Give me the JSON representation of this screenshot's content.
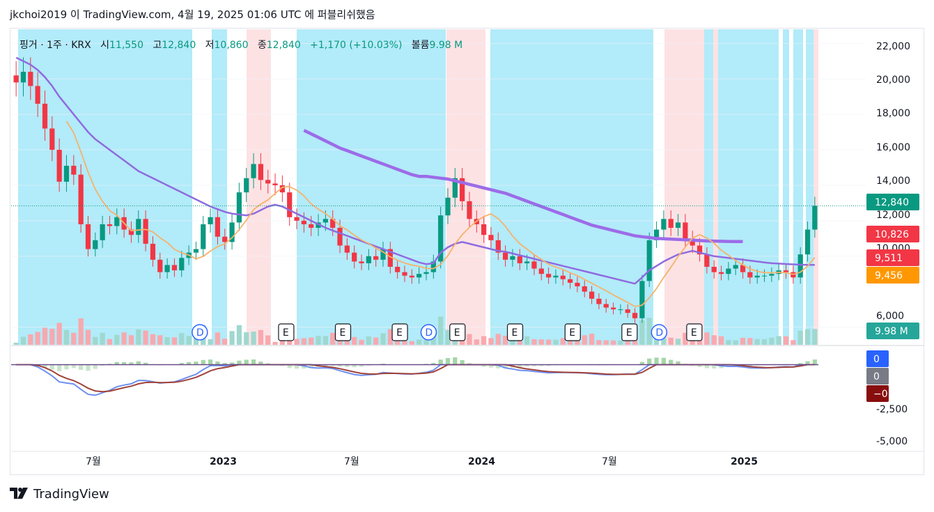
{
  "header": {
    "title": "jkchoi2019 이 TradingView.com, 4월 19, 2025 01:06 UTC 에 퍼블리쉬했음"
  },
  "legend": {
    "symbol": "핑거 · 1주 · KRX",
    "o_label": "시",
    "o_value": "11,550",
    "h_label": "고",
    "h_value": "12,840",
    "l_label": "저",
    "l_value": "10,860",
    "c_label": "종",
    "c_value": "12,840",
    "change": "+1,170 (+10.03%)",
    "vol_label": "볼륨",
    "vol_value": "9.98 M"
  },
  "footer": {
    "brand": "TradingView"
  },
  "colors": {
    "up": "#089981",
    "down": "#f23645",
    "bg_blue": "#b2ebf9",
    "bg_pink": "#fde2e4",
    "ma_long": "#9c6ce8",
    "ma_mid": "#8f6bdf",
    "ma_short": "#f6b26b",
    "macd": "#6d8ff0",
    "signal": "#a0433a"
  },
  "chart_data": [
    {
      "type": "candlestick",
      "title": "",
      "x_tick_labels": [
        "7월",
        "2023",
        "7월",
        "2024",
        "7월",
        "2025"
      ],
      "y_tick_labels": [
        "22,000",
        "20,000",
        "18,000",
        "16,000",
        "14,000",
        "12,000",
        "10,000",
        "6,000"
      ],
      "ylim": [
        5000,
        22800
      ],
      "x_start": "2022-02",
      "x_end": "2025-04",
      "last_close": 12840,
      "price_labels": [
        {
          "text": "12,840",
          "color": "#089981"
        },
        {
          "text": "10,826",
          "color": "#f23645"
        },
        {
          "text": "9,511",
          "color": "#f23645"
        },
        {
          "text": "9,456",
          "color": "#ff9800"
        },
        {
          "text": "9.98 M",
          "color": "#26a69a"
        }
      ],
      "event_markers": [
        {
          "kind": "D",
          "x": 0.227
        },
        {
          "kind": "E",
          "x": 0.335
        },
        {
          "kind": "E",
          "x": 0.406
        },
        {
          "kind": "E",
          "x": 0.477
        },
        {
          "kind": "D",
          "x": 0.513
        },
        {
          "kind": "E",
          "x": 0.549
        },
        {
          "kind": "E",
          "x": 0.621
        },
        {
          "kind": "E",
          "x": 0.693
        },
        {
          "kind": "E",
          "x": 0.764
        },
        {
          "kind": "D",
          "x": 0.801
        },
        {
          "kind": "E",
          "x": 0.845
        }
      ],
      "series": [
        {
          "name": "",
          "type": "close",
          "values": [
            19800,
            20400,
            19600,
            18600,
            17200,
            16000,
            14200,
            15100,
            14600,
            11800,
            10400,
            10900,
            11800,
            11700,
            12200,
            11500,
            11200,
            12100,
            10700,
            9800,
            9100,
            9500,
            9200,
            9900,
            10200,
            10400,
            11800,
            12200,
            11100,
            10800,
            11900,
            13600,
            14400,
            15200,
            14300,
            14100,
            14000,
            13600,
            12200,
            12000,
            11800,
            11600,
            11900,
            12100,
            11600,
            10600,
            10200,
            9700,
            9600,
            10000,
            9800,
            10400,
            9400,
            9100,
            8900,
            8800,
            9000,
            9100,
            9700,
            12300,
            13300,
            14400,
            13100,
            12100,
            11800,
            11200,
            10900,
            10200,
            9800,
            10000,
            9600,
            9700,
            9300,
            9000,
            8800,
            8900,
            8700,
            8500,
            8300,
            8000,
            7600,
            7300,
            7100,
            7000,
            7000,
            6800,
            6500,
            8600,
            10900,
            11500,
            12100,
            11600,
            11900,
            11000,
            10600,
            10100,
            9400,
            9100,
            9000,
            9300,
            9500,
            9100,
            8800,
            8900,
            8900,
            9000,
            9200,
            9100,
            8800,
            10100,
            11500,
            12840
          ]
        },
        {
          "name": "",
          "type": "ma_long",
          "values": [
            null,
            null,
            null,
            null,
            null,
            null,
            null,
            null,
            null,
            null,
            null,
            null,
            null,
            null,
            null,
            null,
            null,
            null,
            null,
            null,
            null,
            null,
            null,
            null,
            null,
            null,
            null,
            null,
            null,
            null,
            null,
            null,
            null,
            null,
            null,
            null,
            null,
            null,
            null,
            null,
            17100,
            16900,
            16700,
            16500,
            16300,
            16100,
            15950,
            15800,
            15650,
            15500,
            15350,
            15200,
            15050,
            14900,
            14750,
            14600,
            14500,
            14500,
            14450,
            14400,
            14350,
            14250,
            14150,
            14050,
            13950,
            13850,
            13750,
            13650,
            13550,
            13400,
            13250,
            13100,
            12950,
            12800,
            12650,
            12500,
            12350,
            12200,
            12050,
            11900,
            11750,
            11650,
            11550,
            11450,
            11350,
            11250,
            11150,
            11100,
            11050,
            11000,
            10980,
            10960,
            10940,
            10920,
            10900,
            10880,
            10860,
            10850,
            10840,
            10830,
            10826,
            10826
          ]
        },
        {
          "name": "",
          "type": "ma_mid",
          "values": [
            21200,
            21000,
            20800,
            20500,
            20100,
            19600,
            19000,
            18500,
            18000,
            17500,
            17000,
            16600,
            16300,
            16000,
            15700,
            15400,
            15100,
            14800,
            14600,
            14400,
            14200,
            14000,
            13800,
            13600,
            13400,
            13200,
            13000,
            12800,
            12650,
            12500,
            12400,
            12350,
            12300,
            12400,
            12600,
            12800,
            12900,
            12800,
            12600,
            12400,
            12200,
            12000,
            11800,
            11600,
            11450,
            11300,
            11150,
            11000,
            10850,
            10700,
            10550,
            10400,
            10250,
            10100,
            9950,
            9800,
            9650,
            9550,
            9600,
            10200,
            10500,
            10700,
            10800,
            10700,
            10600,
            10500,
            10400,
            10300,
            10250,
            10150,
            10050,
            9950,
            9850,
            9750,
            9650,
            9550,
            9450,
            9350,
            9250,
            9150,
            9050,
            8950,
            8850,
            8750,
            8650,
            8550,
            8450,
            8800,
            9200,
            9450,
            9700,
            9900,
            10100,
            10200,
            10300,
            10200,
            10100,
            10000,
            9950,
            9900,
            9850,
            9800,
            9750,
            9700,
            9650,
            9600,
            9580,
            9560,
            9540,
            9520,
            9511,
            9511
          ]
        },
        {
          "name": "",
          "type": "ma_short",
          "values": [
            null,
            null,
            null,
            null,
            null,
            null,
            null,
            null,
            null,
            null,
            null,
            null,
            null,
            null,
            null,
            null,
            null,
            null,
            null,
            null,
            null,
            null,
            null,
            null,
            null,
            null,
            null,
            null,
            null,
            null,
            null,
            null,
            null,
            null,
            null,
            null,
            null,
            null,
            null,
            null,
            null,
            null,
            null,
            null,
            null,
            null,
            null,
            null,
            null,
            null,
            null,
            null,
            null,
            null,
            null,
            null,
            null,
            null,
            null,
            null,
            null,
            null,
            null,
            null,
            null,
            null,
            null,
            null,
            null,
            null,
            null,
            null,
            null,
            null,
            null,
            null,
            null,
            null,
            null,
            null,
            null,
            null,
            null,
            null,
            null,
            null,
            null,
            null,
            null,
            null,
            null,
            null,
            null,
            null,
            null,
            null,
            null,
            null,
            null,
            null,
            null,
            null,
            null,
            null,
            null,
            null,
            null,
            null,
            null,
            null,
            null,
            null
          ]
        }
      ]
    },
    {
      "type": "line",
      "title": "",
      "y_tick_labels": [
        "0",
        "-2,500",
        "-5,000"
      ],
      "ylim": [
        -5500,
        1200
      ],
      "value_labels": [
        {
          "text": "0",
          "color": "#2962ff"
        },
        {
          "text": "0",
          "color": "#787b86"
        },
        {
          "text": "−0",
          "color": "#880e0e"
        }
      ]
    }
  ]
}
